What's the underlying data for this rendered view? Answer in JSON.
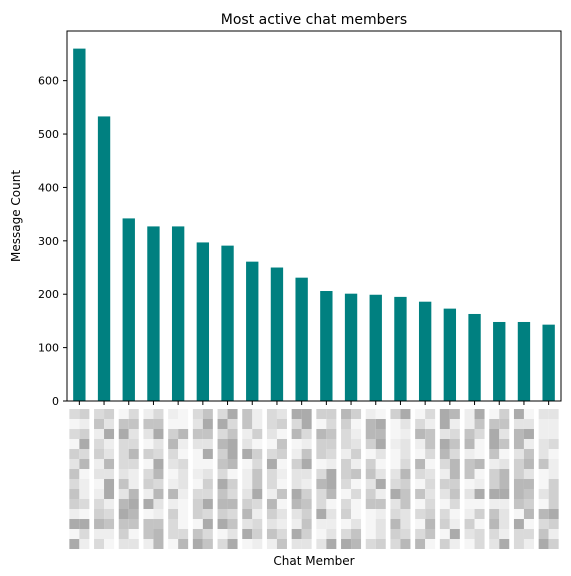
{
  "chart_data": {
    "type": "bar",
    "title": "Most active chat members",
    "xlabel": "Chat Member",
    "ylabel": "Message Count",
    "ylim": [
      0,
      693
    ],
    "yticks": [
      0,
      100,
      200,
      300,
      400,
      500,
      600
    ],
    "grid": false,
    "bar_color": "#008080",
    "tick_labels_pixelated": true,
    "values": [
      660,
      533,
      342,
      327,
      327,
      297,
      291,
      261,
      250,
      231,
      206,
      201,
      199,
      195,
      186,
      173,
      163,
      148,
      148,
      143
    ]
  }
}
